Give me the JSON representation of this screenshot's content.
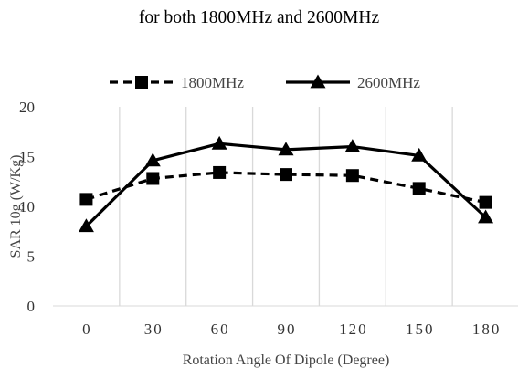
{
  "chart_data": {
    "type": "line",
    "title": "for both 1800MHz and 2600MHz",
    "xlabel": "Rotation Angle Of Dipole (Degree)",
    "ylabel": "SAR 10g (W/Kg)",
    "categories": [
      "0",
      "30",
      "60",
      "90",
      "120",
      "150",
      "180"
    ],
    "ylim": [
      0,
      20
    ],
    "yticks": [
      "0",
      "5",
      "10",
      "15",
      "20"
    ],
    "grid": "vertical",
    "legend_position": "top",
    "series": [
      {
        "name": "1800MHz",
        "values": [
          10.7,
          12.8,
          13.4,
          13.2,
          13.1,
          11.8,
          10.4
        ],
        "marker": "square",
        "line_style": "dashed",
        "color": "#000000"
      },
      {
        "name": "2600MHz",
        "values": [
          8.0,
          14.6,
          16.3,
          15.7,
          16.0,
          15.1,
          8.9
        ],
        "marker": "triangle",
        "line_style": "solid",
        "color": "#000000"
      }
    ]
  }
}
